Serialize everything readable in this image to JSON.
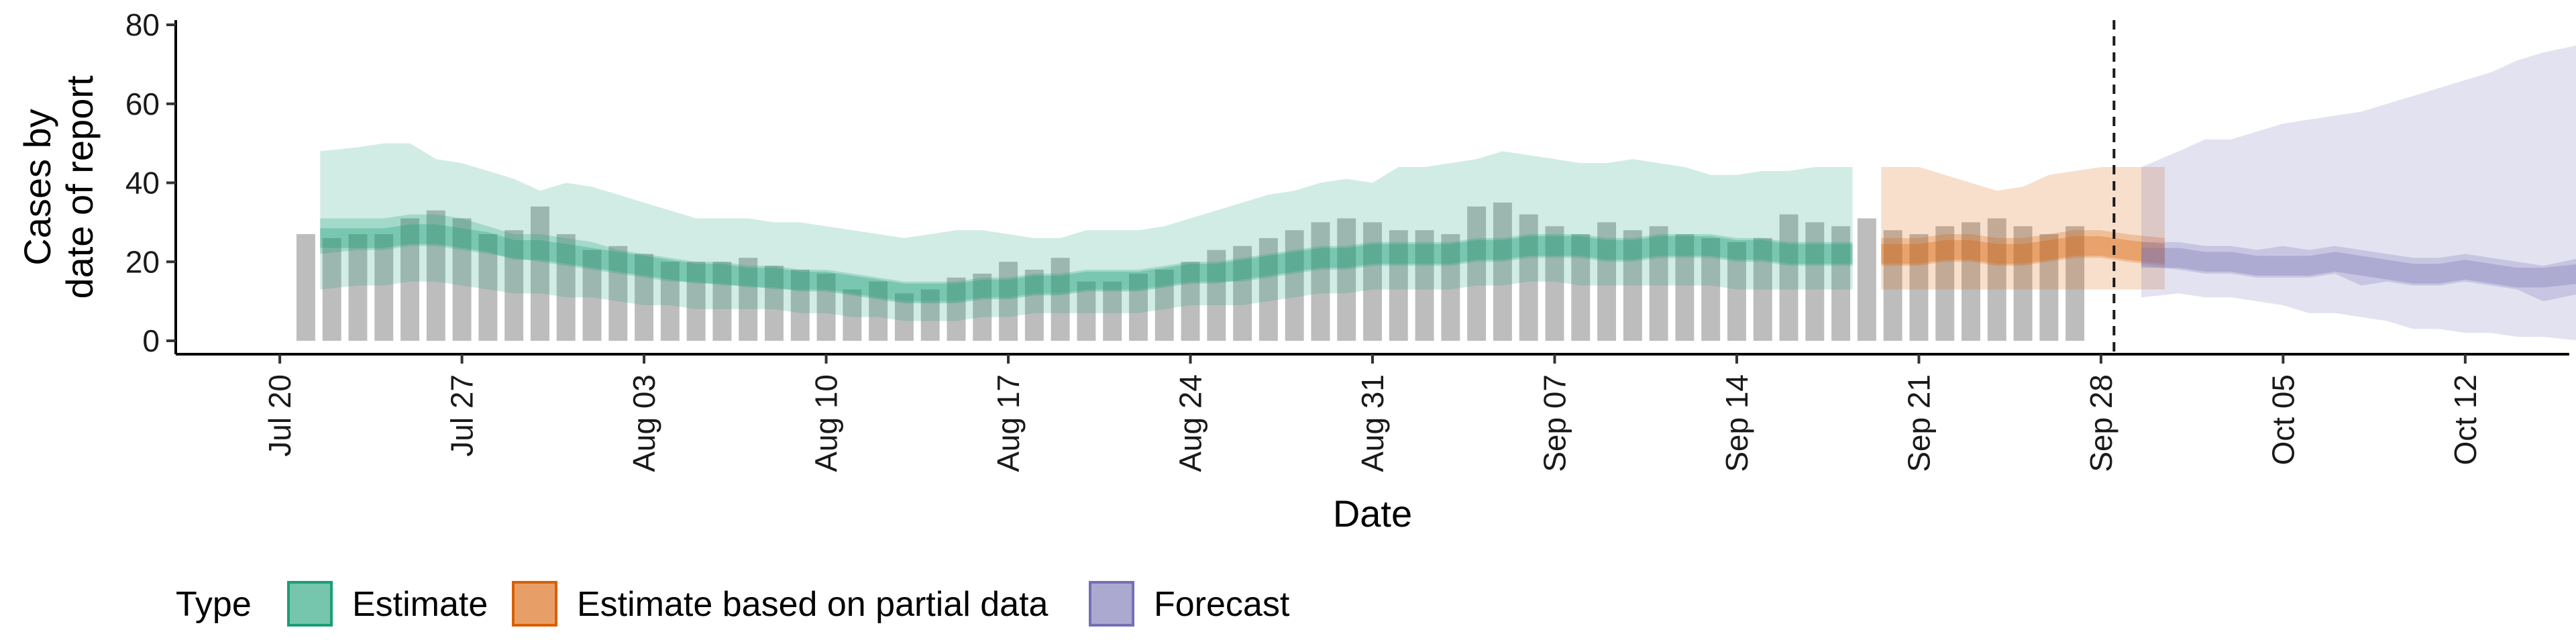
{
  "chart_data": {
    "type": "area",
    "xlabel": "Date",
    "ylabel_lines": [
      "Cases by",
      "date of report"
    ],
    "ylim": [
      0,
      80
    ],
    "yticks": [
      0,
      20,
      40,
      60,
      80
    ],
    "x_range": [
      "2020-07-16",
      "2020-10-16"
    ],
    "x_ticks": [
      {
        "date": "2020-07-20",
        "label": "Jul 20"
      },
      {
        "date": "2020-07-27",
        "label": "Jul 27"
      },
      {
        "date": "2020-08-03",
        "label": "Aug 03"
      },
      {
        "date": "2020-08-10",
        "label": "Aug 10"
      },
      {
        "date": "2020-08-17",
        "label": "Aug 17"
      },
      {
        "date": "2020-08-24",
        "label": "Aug 24"
      },
      {
        "date": "2020-08-31",
        "label": "Aug 31"
      },
      {
        "date": "2020-09-07",
        "label": "Sep 07"
      },
      {
        "date": "2020-09-14",
        "label": "Sep 14"
      },
      {
        "date": "2020-09-21",
        "label": "Sep 21"
      },
      {
        "date": "2020-09-28",
        "label": "Sep 28"
      },
      {
        "date": "2020-10-05",
        "label": "Oct 05"
      },
      {
        "date": "2020-10-12",
        "label": "Oct 12"
      }
    ],
    "vline_date": "2020-09-29",
    "bars": {
      "color": "#bdbdbd",
      "start_date": "2020-07-21",
      "values": [
        27,
        26,
        27,
        27,
        31,
        33,
        31,
        27,
        28,
        34,
        27,
        23,
        24,
        22,
        20,
        20,
        20,
        21,
        19,
        18,
        17,
        13,
        15,
        12,
        13,
        16,
        17,
        20,
        18,
        21,
        15,
        15,
        17,
        18,
        20,
        23,
        24,
        26,
        28,
        30,
        31,
        30,
        28,
        28,
        27,
        34,
        35,
        32,
        29,
        27,
        30,
        28,
        29,
        27,
        26,
        25,
        26,
        32,
        30,
        29,
        31,
        28,
        27,
        29,
        30,
        31,
        29,
        27,
        29
      ]
    },
    "series": [
      {
        "name": "Estimate",
        "color": "#1b9e77",
        "start_date": "2020-07-22",
        "median": [
          26,
          26,
          26,
          27,
          27,
          26,
          25,
          23,
          23,
          22,
          21,
          20,
          19,
          18,
          17,
          17,
          16,
          16,
          15,
          15,
          14,
          13,
          12,
          12,
          12,
          13,
          13,
          14,
          14,
          15,
          15,
          15,
          16,
          17,
          17,
          18,
          19,
          20,
          21,
          21,
          22,
          22,
          22,
          22,
          23,
          23,
          24,
          24,
          24,
          23,
          23,
          24,
          24,
          24,
          23,
          23,
          22,
          22,
          22
        ],
        "inner_low": [
          22,
          23,
          23,
          24,
          24,
          23,
          22,
          21,
          20,
          19,
          18,
          17,
          16,
          15,
          15,
          14,
          14,
          13,
          13,
          13,
          12,
          11,
          10,
          10,
          10,
          11,
          11,
          12,
          12,
          13,
          13,
          13,
          14,
          15,
          15,
          15,
          16,
          17,
          18,
          18,
          19,
          19,
          19,
          19,
          20,
          20,
          21,
          21,
          21,
          20,
          20,
          21,
          21,
          21,
          20,
          20,
          19,
          19,
          19
        ],
        "inner_high": [
          31,
          31,
          31,
          32,
          32,
          31,
          29,
          27,
          27,
          26,
          25,
          23,
          22,
          21,
          20,
          20,
          19,
          19,
          18,
          18,
          17,
          16,
          15,
          15,
          15,
          16,
          16,
          17,
          17,
          18,
          18,
          18,
          19,
          20,
          20,
          21,
          22,
          23,
          24,
          24,
          25,
          25,
          25,
          25,
          26,
          26,
          27,
          27,
          27,
          26,
          26,
          27,
          27,
          27,
          26,
          26,
          25,
          25,
          25
        ],
        "outer_low": [
          13,
          14,
          14,
          15,
          15,
          14,
          13,
          12,
          12,
          11,
          11,
          10,
          9,
          9,
          8,
          8,
          8,
          8,
          7,
          7,
          6,
          6,
          5,
          5,
          5,
          6,
          6,
          7,
          7,
          7,
          7,
          7,
          8,
          9,
          9,
          9,
          10,
          11,
          12,
          12,
          13,
          13,
          13,
          13,
          14,
          14,
          15,
          15,
          14,
          14,
          14,
          14,
          14,
          14,
          13,
          13,
          13,
          13,
          13
        ],
        "outer_high": [
          48,
          49,
          50,
          50,
          46,
          45,
          43,
          41,
          38,
          40,
          39,
          37,
          35,
          33,
          31,
          31,
          31,
          30,
          30,
          29,
          28,
          27,
          26,
          27,
          28,
          28,
          27,
          26,
          26,
          28,
          28,
          28,
          29,
          31,
          33,
          35,
          37,
          38,
          40,
          41,
          40,
          44,
          44,
          45,
          46,
          48,
          47,
          46,
          45,
          45,
          46,
          45,
          44,
          42,
          42,
          43,
          43,
          44,
          44
        ]
      },
      {
        "name": "Estimate based on partial data",
        "color": "#d95f02",
        "start_date": "2020-09-20",
        "median": [
          22,
          22,
          23,
          23,
          22,
          22,
          23,
          24,
          24,
          23,
          22
        ],
        "inner_low": [
          19,
          19,
          20,
          20,
          19,
          19,
          20,
          21,
          21,
          20,
          19
        ],
        "inner_high": [
          26,
          26,
          27,
          27,
          26,
          26,
          27,
          28,
          28,
          27,
          26
        ],
        "outer_low": [
          13,
          13,
          13,
          13,
          13,
          13,
          13,
          13,
          13,
          13,
          13
        ],
        "outer_high": [
          44,
          44,
          42,
          40,
          38,
          39,
          42,
          43,
          44,
          44,
          44
        ]
      },
      {
        "name": "Forecast",
        "color": "#7570b3",
        "start_date": "2020-09-30",
        "median": [
          21,
          21,
          20,
          20,
          19,
          19,
          19,
          20,
          19,
          18,
          17,
          17,
          18,
          17,
          16,
          16,
          17
        ],
        "inner_low": [
          19,
          18,
          17,
          17,
          16,
          16,
          16,
          17,
          14,
          15,
          14,
          14,
          15,
          14,
          13,
          10,
          12
        ],
        "inner_high": [
          25,
          25,
          24,
          24,
          23,
          24,
          23,
          24,
          23,
          22,
          21,
          21,
          22,
          21,
          20,
          19,
          21
        ],
        "outer_low": [
          11,
          12,
          11,
          11,
          10,
          9,
          7,
          7,
          6,
          5,
          3,
          3,
          2,
          2,
          1,
          1,
          0
        ],
        "outer_high": [
          44,
          48,
          51,
          51,
          53,
          55,
          56,
          57,
          58,
          60,
          62,
          64,
          66,
          68,
          71,
          73,
          75
        ]
      }
    ],
    "legend_title": "Type",
    "legend_items": [
      "Estimate",
      "Estimate based on partial data",
      "Forecast"
    ],
    "legend_position": "bottom"
  }
}
